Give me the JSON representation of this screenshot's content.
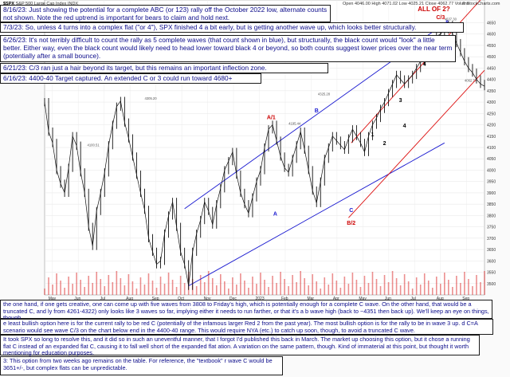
{
  "header": {
    "symbol": "$SPX",
    "name": "S&P 500 Large Cap Index",
    "exchange": "INDX",
    "quote": "Open 4046.00  High 4071.02  Low 4025.21  Close 4062.77  Volume",
    "stamp": "© StockCharts.com"
  },
  "notes_top": [
    {
      "id": "note-8-16",
      "text": "8/16/23:  Just showing the potential for a complete ABC (or 123) rally off the October 2022 low, alternate counts not shown.  Note the red uptrend is important for bears to claim and hold next."
    },
    {
      "id": "note-7-3",
      "text": "7/3/23:  So, unless 4 turns into a complex flat (\"or 4\"), SPX finished 4 a bit early, but is getting another wave up, which looks better structurally."
    },
    {
      "id": "note-6-26",
      "text": "6/26/23:  It's not terribly difficult to count the rally as 5 complete waves (that count shown in blue), but structurally, the black count would \"look\" a little better.  Either way, even the black count would likely need to head lower toward black 4 or beyond, so both counts suggest lower prices over the near term (potentially after a small bounce)."
    },
    {
      "id": "note-6-21",
      "text": "6/21/23:  C/3 ran just a hair beyond its target, but this remains an important inflection zone."
    },
    {
      "id": "note-6-16",
      "text": "6/16/23:  4400-40 Target captured.  An extended C or 3 could run toward 4680+"
    }
  ],
  "notes_bottom": [
    {
      "id": "note-bottom-1",
      "text": "the one hand, if one gets creative, one can come up with five waves from 3808 to Friday's high, which is potentially enough for a complete C wave.  On the other hand, that would be a truncated C, and ly from 4261-4322) only looks like 3 waves so far, implying either it needs to run farther, or that it's a b wave high (back to ~4351 then back up).  We'll keep an eye on things, though."
    },
    {
      "id": "note-bottom-2",
      "text": "e least bullish option here is for the current rally to be red C (potentially of the infamous larger Red 2 from the past year).  The most bullish option is for the rally to be in wave 3 up. d C=A scenario would see wave C/3 on the chart below end in the 4400-40 range.  This would require NYA (etc.) to catch up soon, though, to avoid a truncated C wave."
    },
    {
      "id": "note-bottom-3",
      "text": "It took SPX so long to resolve this, and it did so in such an uneventful manner, that I forgot I'd published this back in March.  The market up choosing this option, but it chose a running flat C instead of an expanded flat C, causing it to fall well short of the expanded flat ation.  A variation on the same pattern, though.  Kind of immaterial at this point, but thought it worth mentioning for education purposes."
    },
    {
      "id": "note-bottom-4",
      "text": "3:  This option from two weeks ago remains on the table.  For reference, the \"textbook\" r wave C would be 3651+/-, but complex flats can be unpredictable."
    }
  ],
  "chart_data": {
    "type": "line",
    "title": "",
    "xlabel": "",
    "ylabel": "",
    "ylim": [
      3450,
      4750
    ],
    "x_ticks": [
      "May",
      "Jun",
      "Jul",
      "Aug",
      "Sep",
      "Oct",
      "Nov",
      "Dec",
      "2023",
      "Feb",
      "Mar",
      "Apr",
      "May",
      "Jun",
      "Jul",
      "Aug",
      "Sep"
    ],
    "y_ticks": [
      3500,
      3550,
      3600,
      3650,
      3700,
      3750,
      3800,
      3850,
      3900,
      3950,
      4000,
      4050,
      4100,
      4150,
      4200,
      4250,
      4300,
      4350,
      4400,
      4450,
      4500,
      4550,
      4600,
      4650
    ],
    "series": [
      {
        "name": "",
        "t": [
          0,
          3,
          6,
          9,
          12,
          15,
          18,
          21,
          24,
          27,
          30,
          33,
          36,
          39,
          42,
          45,
          48,
          51,
          54,
          57,
          60,
          63,
          66,
          69,
          72,
          75,
          78,
          81,
          84,
          87,
          90,
          93,
          96,
          99,
          102,
          105,
          108,
          111,
          114,
          117,
          120,
          123,
          126,
          129,
          132,
          135,
          138,
          141,
          144,
          147,
          150,
          153,
          156,
          159,
          162,
          165,
          168,
          171,
          174,
          177,
          180,
          183,
          186,
          189,
          192,
          195,
          198,
          201,
          204,
          207,
          210,
          213,
          216,
          219,
          222,
          225,
          228,
          231,
          234,
          237,
          240,
          243,
          246,
          249,
          252,
          255,
          258,
          261,
          264,
          267,
          270,
          273,
          276,
          279,
          282,
          285,
          288,
          291,
          294,
          297,
          300,
          303,
          306,
          309,
          312,
          315,
          318,
          321,
          324,
          327,
          330
        ],
        "close": [
          4300,
          4170,
          4120,
          4000,
          3940,
          3900,
          4010,
          4150,
          4108,
          3990,
          3900,
          3750,
          3666,
          3820,
          3900,
          3990,
          4110,
          4200,
          4280,
          4305,
          4210,
          4140,
          4060,
          3980,
          3900,
          3825,
          3700,
          3640,
          3585,
          3600,
          3720,
          3800,
          3860,
          3750,
          3640,
          3585,
          3490,
          3640,
          3720,
          3780,
          3860,
          3820,
          3760,
          3850,
          3920,
          4000,
          4040,
          4080,
          3980,
          3900,
          3850,
          3810,
          3880,
          3950,
          4000,
          4100,
          4180,
          4200,
          4130,
          4060,
          4010,
          3990,
          4050,
          4110,
          4170,
          4090,
          4000,
          3910,
          3855,
          3950,
          4050,
          4100,
          4150,
          4130,
          4110,
          4090,
          4140,
          4180,
          4150,
          4120,
          4080,
          4150,
          4200,
          4230,
          4270,
          4300,
          4340,
          4380,
          4420,
          4400,
          4380,
          4400,
          4420,
          4450,
          4480,
          4500,
          4530,
          4560,
          4590,
          4600,
          4620,
          4640,
          4600,
          4560,
          4520,
          4480,
          4450,
          4430,
          4400,
          4380,
          4370
        ]
      }
    ],
    "annotations": [
      {
        "id": "all-of-2",
        "text": "ALL OF 2?",
        "t": 292,
        "y": 4700,
        "color": "#cc0000"
      },
      {
        "id": "c-3",
        "text": "C/3",
        "t": 297,
        "y": 4665,
        "color": "#cc0000"
      },
      {
        "id": "blue-5",
        "text": "5",
        "t": 302,
        "y": 4642,
        "color": "#1a1ad0"
      },
      {
        "id": "a-1",
        "text": "A/1",
        "t": 170,
        "y": 4225,
        "color": "#cc0000"
      },
      {
        "id": "blue-b",
        "text": "B",
        "t": 204,
        "y": 4255,
        "color": "#1a1ad0"
      },
      {
        "id": "blue-a",
        "text": "A",
        "t": 173,
        "y": 3800,
        "color": "#1a1ad0"
      },
      {
        "id": "blue-c",
        "text": "C",
        "t": 230,
        "y": 3815,
        "color": "#1a1ad0"
      },
      {
        "id": "b-2",
        "text": "B/2",
        "t": 230,
        "y": 3760,
        "color": "#cc0000"
      },
      {
        "id": "black-1",
        "text": "1",
        "t": 246,
        "y": 4150,
        "color": "#000000"
      },
      {
        "id": "black-2",
        "text": "2",
        "t": 255,
        "y": 4110,
        "color": "#000000"
      },
      {
        "id": "black-3",
        "text": "3",
        "t": 267,
        "y": 4300,
        "color": "#000000"
      },
      {
        "id": "black-4",
        "text": "4",
        "t": 270,
        "y": 4188,
        "color": "#000000"
      },
      {
        "id": "red-3",
        "text": "3",
        "t": 281,
        "y": 4500,
        "color": "#cc0000"
      },
      {
        "id": "red-4",
        "text": "4",
        "t": 285,
        "y": 4460,
        "color": "#000000"
      },
      {
        "id": "blue-4",
        "text": "4",
        "t": 293,
        "y": 4500,
        "color": "#1a1ad0"
      }
    ],
    "price_labels": [
      "4637.30",
      "4305.20",
      "4325.28",
      "4195.44",
      "4100.51",
      "4062.77"
    ],
    "colors": {
      "uptrend": "#dd1111",
      "channel": "#1a1ad0",
      "price": "#111111",
      "volume": "#dd3333"
    }
  }
}
